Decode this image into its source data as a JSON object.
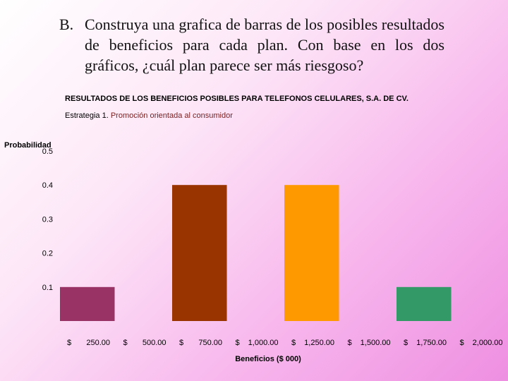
{
  "question": {
    "label": "B.",
    "text": "Construya una grafica de barras de los posibles resultados de beneficios para cada plan. Con base en los dos gráficos, ¿cuál plan parece ser más riesgoso?"
  },
  "chart_data": {
    "type": "bar",
    "title": "RESULTADOS DE LOS BENEFICIOS POSIBLES PARA TELEFONOS CELULARES, S.A. DE CV.",
    "subtitle_prefix": "Estrategia 1.",
    "subtitle_rest": "Promoción orientada al consumidor",
    "ylabel": "Probabilidad",
    "xlabel": "Beneficios ($ 000)",
    "ylim": [
      0,
      0.5
    ],
    "yticks": [
      "0.1",
      "0.2",
      "0.3",
      "0.4",
      "0.5"
    ],
    "ytick_values": [
      0.1,
      0.2,
      0.3,
      0.4,
      0.5
    ],
    "xticks": [
      {
        "cur": "$",
        "num": "250.00"
      },
      {
        "cur": "$",
        "num": "500.00"
      },
      {
        "cur": "$",
        "num": "750.00"
      },
      {
        "cur": "$",
        "num": "1,000.00"
      },
      {
        "cur": "$",
        "num": "1,250.00"
      },
      {
        "cur": "$",
        "num": "1,500.00"
      },
      {
        "cur": "$",
        "num": "1,750.00"
      },
      {
        "cur": "$",
        "num": "2,000.00"
      }
    ],
    "bars": [
      {
        "slot": 0,
        "value": 0.1,
        "color": "#993366"
      },
      {
        "slot": 2,
        "value": 0.4,
        "color": "#993300"
      },
      {
        "slot": 4,
        "value": 0.4,
        "color": "#ff9900"
      },
      {
        "slot": 6,
        "value": 0.1,
        "color": "#339966"
      }
    ],
    "grid": false
  }
}
